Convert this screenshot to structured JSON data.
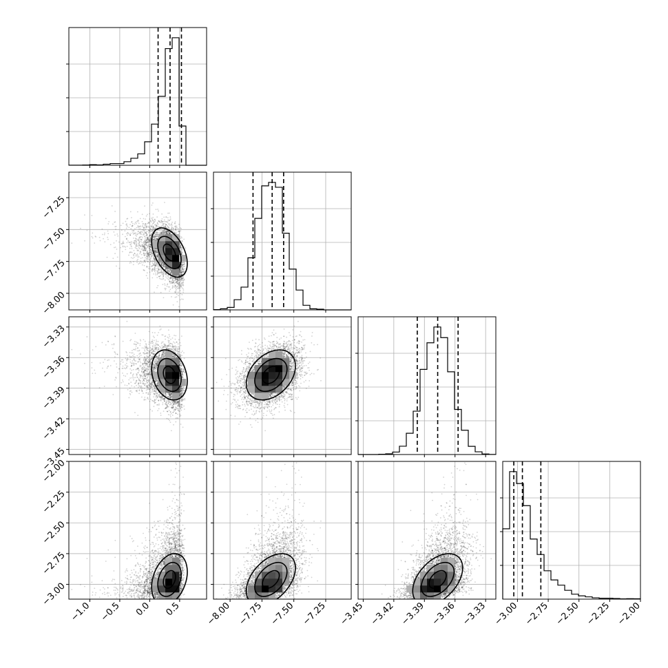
{
  "chart_data": {
    "type": "corner",
    "parameters": [
      {
        "index": 0,
        "range": [
          -1.35,
          0.95
        ],
        "ticks": [
          -1.0,
          -0.5,
          0.0,
          0.5
        ],
        "tick_labels": [
          "−1.0",
          "−0.5",
          "0.0",
          "0.5"
        ],
        "mean": 0.33,
        "sd": 0.17,
        "quantiles": [
          0.14,
          0.34,
          0.53
        ],
        "skew": -1.0
      },
      {
        "index": 1,
        "range": [
          -8.13,
          -7.05
        ],
        "ticks": [
          -8.0,
          -7.75,
          -7.5,
          -7.25
        ],
        "tick_labels": [
          "−8.00",
          "−7.75",
          "−7.50",
          "−7.25"
        ],
        "mean": -7.68,
        "sd": 0.11,
        "quantiles": [
          -7.82,
          -7.67,
          -7.58
        ],
        "skew": 0.0
      },
      {
        "index": 2,
        "range": [
          -3.455,
          -3.32
        ],
        "ticks": [
          -3.45,
          -3.42,
          -3.39,
          -3.36,
          -3.33
        ],
        "tick_labels": [
          "−3.45",
          "−3.42",
          "−3.39",
          "−3.36",
          "−3.33"
        ],
        "mean": -3.377,
        "sd": 0.014,
        "quantiles": [
          -3.397,
          -3.377,
          -3.357
        ],
        "skew": 0.0
      },
      {
        "index": 3,
        "range": [
          -3.12,
          -2.0
        ],
        "ticks": [
          -3.0,
          -2.75,
          -2.5,
          -2.25,
          -2.0
        ],
        "tick_labels": [
          "−3.00",
          "−2.75",
          "−2.50",
          "−2.25",
          "−2.00"
        ],
        "mean": -2.96,
        "sd": 0.12,
        "quantiles": [
          -3.03,
          -2.96,
          -2.81
        ],
        "skew": 1.0
      }
    ],
    "correlations": [
      {
        "i": 1,
        "j": 0,
        "rho": -0.45
      },
      {
        "i": 2,
        "j": 0,
        "rho": -0.25
      },
      {
        "i": 2,
        "j": 1,
        "rho": 0.35
      },
      {
        "i": 3,
        "j": 0,
        "rho": 0.3
      },
      {
        "i": 3,
        "j": 1,
        "rho": 0.45
      },
      {
        "i": 3,
        "j": 2,
        "rho": 0.45
      }
    ],
    "histogram_bins": 20,
    "grid": true
  }
}
